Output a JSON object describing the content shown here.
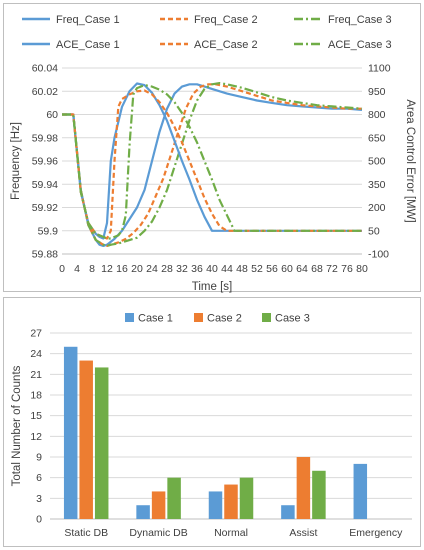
{
  "chart_data": [
    {
      "type": "line",
      "xlabel": "Time [s]",
      "ylabel": "Frequency [Hz]",
      "y2label": "Area Control Error [MW]",
      "xlim": [
        0,
        80
      ],
      "ylim": [
        59.88,
        60.04
      ],
      "y2lim": [
        -100,
        1100
      ],
      "x_ticks": [
        "0",
        "4",
        "8",
        "12",
        "16",
        "20",
        "24",
        "28",
        "32",
        "36",
        "40",
        "44",
        "48",
        "52",
        "56",
        "60",
        "64",
        "68",
        "72",
        "76",
        "80"
      ],
      "y_ticks": [
        "59.88",
        "59.9",
        "59.92",
        "59.94",
        "59.96",
        "59.98",
        "60",
        "60.02",
        "60.04"
      ],
      "y2_ticks": [
        "-100",
        "50",
        "200",
        "350",
        "500",
        "650",
        "800",
        "950",
        "1100"
      ],
      "grid": true,
      "legend": "top",
      "series": [
        {
          "name": "Freq_Case 1",
          "axis": "left",
          "color": "#5b9bd5",
          "dash": "solid",
          "x": [
            0,
            3,
            5,
            7,
            9,
            10,
            11,
            12,
            14,
            16,
            18,
            20,
            22,
            24,
            26,
            28,
            30,
            32,
            34,
            36,
            38,
            40,
            44,
            48,
            52,
            56,
            60,
            64,
            68,
            72,
            76,
            80
          ],
          "y": [
            60.0,
            60.0,
            59.935,
            59.905,
            59.892,
            59.888,
            59.887,
            59.888,
            59.893,
            59.9,
            59.91,
            59.92,
            59.935,
            59.96,
            59.985,
            60.005,
            60.018,
            60.024,
            60.026,
            60.026,
            60.024,
            60.022,
            60.018,
            60.015,
            60.012,
            60.01,
            60.008,
            60.007,
            60.006,
            60.005,
            60.005,
            60.004
          ]
        },
        {
          "name": "Freq_Case 2",
          "axis": "left",
          "color": "#ed7d31",
          "dash": "dash",
          "x": [
            0,
            3,
            5,
            7,
            9,
            11,
            12,
            13,
            15,
            17,
            19,
            21,
            23,
            25,
            27,
            29,
            31,
            33,
            35,
            37,
            39,
            41,
            44,
            48,
            52,
            56,
            60,
            64,
            68,
            72,
            76,
            80
          ],
          "y": [
            60.0,
            60.0,
            59.935,
            59.905,
            59.892,
            59.888,
            59.887,
            59.888,
            59.89,
            59.893,
            59.898,
            59.905,
            59.915,
            59.93,
            59.945,
            59.965,
            59.985,
            60.005,
            60.018,
            60.024,
            60.026,
            60.026,
            60.024,
            60.02,
            60.016,
            60.012,
            60.01,
            60.008,
            60.007,
            60.006,
            60.005,
            60.005
          ]
        },
        {
          "name": "Freq_Case 3",
          "axis": "left",
          "color": "#70ad47",
          "dash": "dashdot",
          "x": [
            0,
            3,
            5,
            7,
            9,
            11,
            12,
            13,
            15,
            17,
            20,
            22,
            24,
            26,
            28,
            30,
            32,
            34,
            36,
            38,
            40,
            42,
            44,
            48,
            52,
            56,
            60,
            64,
            68,
            72,
            76,
            80
          ],
          "y": [
            60.0,
            60.0,
            59.935,
            59.905,
            59.892,
            59.888,
            59.887,
            59.888,
            59.889,
            59.891,
            59.894,
            59.9,
            59.908,
            59.92,
            59.935,
            59.955,
            59.975,
            59.995,
            60.012,
            60.022,
            60.026,
            60.027,
            60.026,
            60.023,
            60.019,
            60.015,
            60.012,
            60.01,
            60.008,
            60.007,
            60.006,
            60.005
          ]
        },
        {
          "name": "ACE_Case 1",
          "axis": "right",
          "color": "#5b9bd5",
          "dash": "solid",
          "x": [
            0,
            3,
            5,
            7,
            9,
            10,
            11,
            12,
            13,
            14,
            16,
            18,
            20,
            22,
            24,
            26,
            28,
            30,
            32,
            34,
            36,
            38,
            40,
            44,
            48,
            52,
            56,
            60,
            64,
            68,
            72,
            76,
            80
          ],
          "y": [
            800,
            800,
            300,
            100,
            30,
            10,
            0,
            100,
            500,
            650,
            850,
            950,
            1000,
            990,
            940,
            860,
            760,
            630,
            500,
            380,
            250,
            140,
            50,
            50,
            50,
            50,
            50,
            50,
            50,
            50,
            50,
            50,
            50
          ]
        },
        {
          "name": "ACE_Case 2",
          "axis": "right",
          "color": "#ed7d31",
          "dash": "dash",
          "x": [
            0,
            3,
            5,
            7,
            9,
            11,
            12,
            13,
            14,
            15,
            16,
            18,
            20,
            22,
            24,
            26,
            28,
            30,
            32,
            34,
            36,
            38,
            40,
            42,
            44,
            48,
            52,
            56,
            60,
            64,
            68,
            72,
            76,
            80
          ],
          "y": [
            800,
            800,
            300,
            100,
            30,
            10,
            0,
            50,
            500,
            850,
            900,
            930,
            950,
            955,
            930,
            880,
            810,
            720,
            620,
            500,
            380,
            260,
            160,
            80,
            50,
            50,
            50,
            50,
            50,
            50,
            50,
            50,
            50,
            50
          ]
        },
        {
          "name": "ACE_Case 3",
          "axis": "right",
          "color": "#70ad47",
          "dash": "dashdot",
          "x": [
            0,
            3,
            5,
            7,
            9,
            11,
            12,
            13,
            14,
            15,
            16,
            17,
            18,
            19,
            20,
            22,
            24,
            26,
            28,
            30,
            32,
            34,
            36,
            38,
            40,
            42,
            44,
            46,
            48,
            52,
            56,
            60,
            64,
            68,
            72,
            76,
            80
          ],
          "y": [
            800,
            800,
            300,
            100,
            30,
            10,
            0,
            0,
            10,
            20,
            50,
            150,
            600,
            930,
            970,
            990,
            980,
            960,
            930,
            880,
            810,
            720,
            620,
            500,
            380,
            250,
            150,
            50,
            50,
            50,
            50,
            50,
            50,
            50,
            50,
            50,
            50
          ]
        }
      ]
    },
    {
      "type": "bar",
      "ylabel": "Total Number of Counts",
      "ylim": [
        0,
        27
      ],
      "y_ticks": [
        "0",
        "3",
        "6",
        "9",
        "12",
        "15",
        "18",
        "21",
        "24",
        "27"
      ],
      "grid": true,
      "legend": "top",
      "categories": [
        "Static DB",
        "Dynamic DB",
        "Normal",
        "Assist",
        "Emergency"
      ],
      "series": [
        {
          "name": "Case 1",
          "color": "#5b9bd5",
          "values": [
            25,
            2,
            4,
            2,
            8
          ]
        },
        {
          "name": "Case 2",
          "color": "#ed7d31",
          "values": [
            23,
            4,
            5,
            9,
            0
          ]
        },
        {
          "name": "Case 3",
          "color": "#70ad47",
          "values": [
            22,
            6,
            6,
            7,
            0
          ]
        }
      ]
    }
  ]
}
